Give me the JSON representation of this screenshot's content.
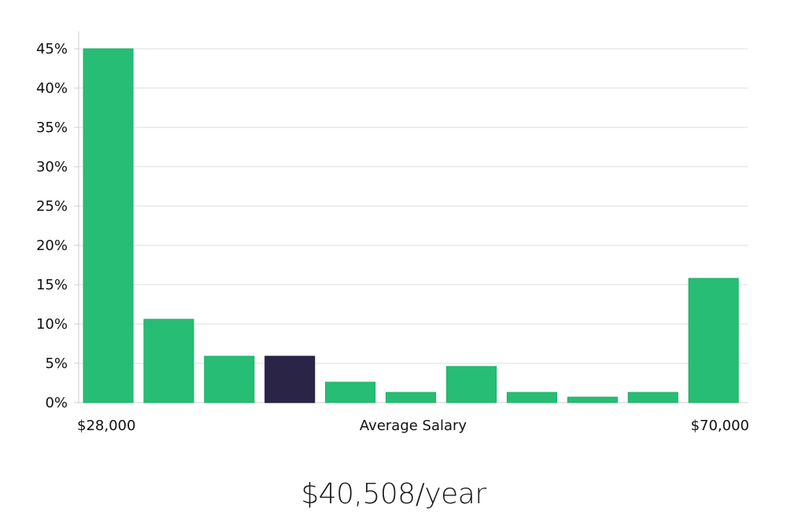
{
  "chart_data": {
    "type": "bar",
    "values": [
      45,
      10.6,
      5.9,
      5.9,
      2.6,
      1.3,
      4.6,
      1.3,
      0.7,
      1.3,
      15.8
    ],
    "highlight_index": 3,
    "ylim": [
      0,
      45
    ],
    "yticks": [
      0,
      5,
      10,
      15,
      20,
      25,
      30,
      35,
      40,
      45
    ],
    "ytick_suffix": "%",
    "grid": true,
    "xlabel": "Average Salary",
    "x_start_label": "$28,000",
    "x_end_label": "$70,000",
    "colors": {
      "bar": "#27bd74",
      "highlight": "#2a2546",
      "grid": "#dcdcdc",
      "axis": "#cfcfcf"
    }
  },
  "salary_text": "$40,508/year"
}
